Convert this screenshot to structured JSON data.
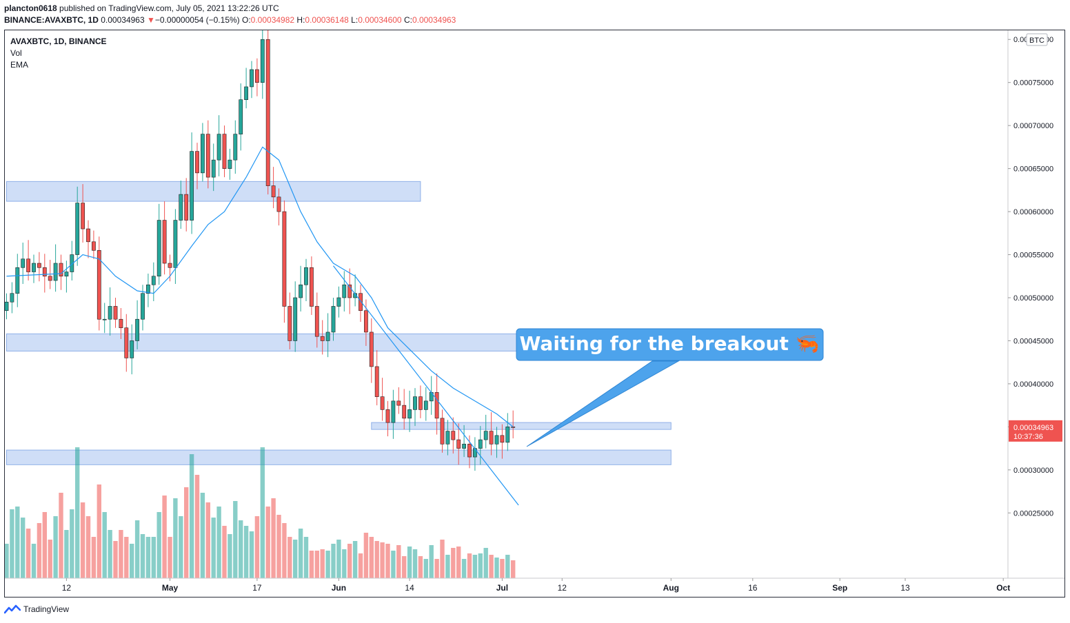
{
  "header": {
    "publisher": "plancton0618",
    "published_text": "published on TradingView.com, July 05, 2021 13:22:26 UTC",
    "symbol_full": "BINANCE:AVAXBTC, 1D",
    "last": "0.00034963",
    "change_arrow": "▼",
    "change": "−0.00000054 (−0.15%)",
    "o_label": "O:",
    "o_value": "0.00034982",
    "h_label": "H:",
    "h_value": "0.00036148",
    "l_label": "L:",
    "l_value": "0.00034600",
    "c_label": "C:",
    "c_value": "0.00034963"
  },
  "legend": {
    "title": "AVAXBTC, 1D, BINANCE",
    "vol": "Vol",
    "ema": "EMA"
  },
  "footer": {
    "brand": "TradingView"
  },
  "colors": {
    "up": "#26a69a",
    "down": "#ef5350",
    "ema": "#2196f3",
    "zone": "#b6cdf3",
    "callout": "#4da3ec"
  },
  "chart_data": {
    "type": "candlestick",
    "title": "AVAXBTC, 1D, BINANCE",
    "currency_label": "BTC",
    "y_range": [
      0.000215,
      0.000805
    ],
    "y_ticks": [
      "0.00080000",
      "0.00075000",
      "0.00070000",
      "0.00065000",
      "0.00060000",
      "0.00055000",
      "0.00050000",
      "0.00045000",
      "0.00040000",
      "0.00035000",
      "0.00030000",
      "0.00025000"
    ],
    "x_ticks": [
      {
        "label": "12",
        "day": 11
      },
      {
        "label": "May",
        "day": 30
      },
      {
        "label": "17",
        "day": 46
      },
      {
        "label": "Jun",
        "day": 61
      },
      {
        "label": "14",
        "day": 74
      },
      {
        "label": "Jul",
        "day": 91
      },
      {
        "label": "12",
        "day": 102
      },
      {
        "label": "Aug",
        "day": 122
      },
      {
        "label": "16",
        "day": 137
      },
      {
        "label": "Sep",
        "day": 153
      },
      {
        "label": "13",
        "day": 165
      },
      {
        "label": "Oct",
        "day": 183
      }
    ],
    "start_day_label": "2021-04-01",
    "closes": [
      0.000495,
      0.000505,
      0.000535,
      0.000545,
      0.00053,
      0.00054,
      0.000535,
      0.000525,
      0.00052,
      0.00054,
      0.000525,
      0.00053,
      0.00055,
      0.00061,
      0.00058,
      0.000565,
      0.000555,
      0.000475,
      0.000475,
      0.00049,
      0.000475,
      0.000465,
      0.00043,
      0.00045,
      0.000475,
      0.000505,
      0.000515,
      0.000525,
      0.00059,
      0.00054,
      0.000535,
      0.00059,
      0.00062,
      0.00059,
      0.00067,
      0.000645,
      0.00069,
      0.00064,
      0.00066,
      0.00069,
      0.00065,
      0.00066,
      0.00069,
      0.00073,
      0.000745,
      0.000765,
      0.00075,
      0.0008,
      0.00063,
      0.000617,
      0.0006,
      0.00049,
      0.00045,
      0.0005,
      0.000515,
      0.000535,
      0.00049,
      0.000455,
      0.00045,
      0.00046,
      0.00049,
      0.0005,
      0.000515,
      0.0005,
      0.000505,
      0.000485,
      0.00046,
      0.00042,
      0.000385,
      0.00037,
      0.000355,
      0.00038,
      0.000375,
      0.00036,
      0.00037,
      0.000385,
      0.00037,
      0.00038,
      0.00039,
      0.00036,
      0.00033,
      0.000345,
      0.000335,
      0.000325,
      0.00033,
      0.000315,
      0.000325,
      0.000335,
      0.000345,
      0.00033,
      0.00034,
      0.000332,
      0.00035,
      0.0003496
    ],
    "ema_points": [
      [
        0,
        0.000525
      ],
      [
        10,
        0.000528
      ],
      [
        14,
        0.00055
      ],
      [
        17,
        0.000545
      ],
      [
        20,
        0.000525
      ],
      [
        24,
        0.000508
      ],
      [
        27,
        0.000505
      ],
      [
        30,
        0.000525
      ],
      [
        34,
        0.00056
      ],
      [
        37,
        0.000585
      ],
      [
        40,
        0.0006
      ],
      [
        44,
        0.00064
      ],
      [
        47,
        0.000675
      ],
      [
        50,
        0.00066
      ],
      [
        54,
        0.0006
      ],
      [
        57,
        0.000565
      ],
      [
        60,
        0.00054
      ],
      [
        64,
        0.000525
      ],
      [
        67,
        0.0005
      ],
      [
        70,
        0.000465
      ],
      [
        74,
        0.00044
      ],
      [
        78,
        0.000415
      ],
      [
        82,
        0.000395
      ],
      [
        86,
        0.00038
      ],
      [
        90,
        0.000365
      ],
      [
        93,
        0.00035
      ]
    ],
    "volumes": [
      0.25,
      0.5,
      0.52,
      0.44,
      0.36,
      0.25,
      0.4,
      0.48,
      0.28,
      0.45,
      0.62,
      0.35,
      0.5,
      0.95,
      0.55,
      0.45,
      0.3,
      0.68,
      0.48,
      0.35,
      0.27,
      0.35,
      0.3,
      0.25,
      0.42,
      0.32,
      0.3,
      0.3,
      0.48,
      0.6,
      0.3,
      0.58,
      0.45,
      0.66,
      0.9,
      0.75,
      0.62,
      0.55,
      0.44,
      0.52,
      0.38,
      0.32,
      0.56,
      0.42,
      0.38,
      0.34,
      0.45,
      0.95,
      0.52,
      0.58,
      0.46,
      0.4,
      0.3,
      0.28,
      0.36,
      0.3,
      0.2,
      0.2,
      0.21,
      0.2,
      0.25,
      0.28,
      0.21,
      0.25,
      0.27,
      0.18,
      0.33,
      0.3,
      0.27,
      0.26,
      0.25,
      0.2,
      0.24,
      0.16,
      0.23,
      0.21,
      0.16,
      0.14,
      0.24,
      0.14,
      0.28,
      0.17,
      0.22,
      0.23,
      0.14,
      0.18,
      0.17,
      0.18,
      0.22,
      0.17,
      0.15,
      0.14,
      0.17,
      0.13
    ],
    "support_zones": [
      {
        "from_day": 0,
        "to_day": 76,
        "low": 0.000612,
        "high": 0.000635
      },
      {
        "from_day": 0,
        "to_day": 109,
        "low": 0.000438,
        "high": 0.000458
      },
      {
        "from_day": 67,
        "to_day": 122,
        "low": 0.000347,
        "high": 0.000355
      },
      {
        "from_day": 0,
        "to_day": 122,
        "low": 0.000306,
        "high": 0.000323
      }
    ],
    "trendline": {
      "from": [
        60,
        0.000537
      ],
      "to": [
        94,
        0.000259
      ]
    },
    "last_price_label": "0.00034963",
    "countdown_label": "10:37:36",
    "annotation": "Waiting for the breakout 🦐"
  }
}
